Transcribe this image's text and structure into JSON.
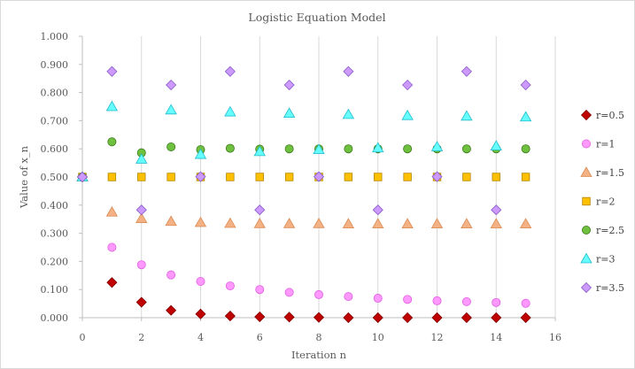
{
  "chart_data": {
    "type": "scatter",
    "title": "Logistic Equation Model",
    "xlabel": "Iteration  n",
    "ylabel": "Value of x_n",
    "xlim": [
      0,
      16
    ],
    "ylim": [
      0,
      1
    ],
    "xticks": [
      0,
      2,
      4,
      6,
      8,
      10,
      12,
      14,
      16
    ],
    "xtick_labels": [
      "0",
      "2",
      "4",
      "6",
      "8",
      "10",
      "12",
      "14",
      "16"
    ],
    "yticks": [
      0,
      0.1,
      0.2,
      0.3,
      0.4,
      0.5,
      0.6,
      0.7,
      0.8,
      0.9,
      1.0
    ],
    "ytick_labels": [
      "0.000",
      "0.100",
      "0.200",
      "0.300",
      "0.400",
      "0.500",
      "0.600",
      "0.700",
      "0.800",
      "0.900",
      "1.000"
    ],
    "grid": "vertical",
    "legend_position": "right",
    "x": [
      0,
      1,
      2,
      3,
      4,
      5,
      6,
      7,
      8,
      9,
      10,
      11,
      12,
      13,
      14,
      15
    ],
    "series": [
      {
        "name": "r=0.5",
        "marker": "diamond",
        "color": "#C00000",
        "stroke": "#7f0000",
        "values": [
          0.5,
          0.125,
          0.055,
          0.026,
          0.013,
          0.006,
          0.003,
          0.002,
          0.001,
          0.0,
          0.0,
          0.0,
          0.0,
          0.0,
          0.0,
          0.0
        ]
      },
      {
        "name": "r=1",
        "marker": "circle",
        "color": "#FF99FF",
        "stroke": "#e060e0",
        "values": [
          0.5,
          0.25,
          0.188,
          0.152,
          0.129,
          0.113,
          0.1,
          0.09,
          0.082,
          0.075,
          0.069,
          0.065,
          0.06,
          0.057,
          0.054,
          0.051
        ]
      },
      {
        "name": "r=1.5",
        "marker": "triangle",
        "color": "#F4B183",
        "stroke": "#d98b55",
        "values": [
          0.5,
          0.375,
          0.352,
          0.342,
          0.338,
          0.335,
          0.334,
          0.334,
          0.334,
          0.333,
          0.333,
          0.333,
          0.333,
          0.333,
          0.333,
          0.333
        ]
      },
      {
        "name": "r=2",
        "marker": "square",
        "color": "#FFC000",
        "stroke": "#b38600",
        "values": [
          0.5,
          0.5,
          0.5,
          0.5,
          0.5,
          0.5,
          0.5,
          0.5,
          0.5,
          0.5,
          0.5,
          0.5,
          0.5,
          0.5,
          0.5,
          0.5
        ]
      },
      {
        "name": "r=2.5",
        "marker": "circle",
        "color": "#70C040",
        "stroke": "#3a7a1a",
        "values": [
          0.5,
          0.625,
          0.586,
          0.607,
          0.597,
          0.602,
          0.599,
          0.6,
          0.6,
          0.6,
          0.6,
          0.6,
          0.6,
          0.6,
          0.6,
          0.6
        ]
      },
      {
        "name": "r=3",
        "marker": "triangle",
        "color": "#66FFFF",
        "stroke": "#22bbcc",
        "values": [
          0.5,
          0.75,
          0.563,
          0.738,
          0.58,
          0.731,
          0.59,
          0.726,
          0.597,
          0.722,
          0.603,
          0.718,
          0.607,
          0.716,
          0.61,
          0.713
        ]
      },
      {
        "name": "r=3.5",
        "marker": "diamond",
        "color": "#CC99FF",
        "stroke": "#8a5cc7",
        "values": [
          0.5,
          0.875,
          0.383,
          0.827,
          0.501,
          0.875,
          0.383,
          0.827,
          0.501,
          0.875,
          0.383,
          0.827,
          0.501,
          0.875,
          0.383,
          0.827
        ]
      }
    ]
  }
}
